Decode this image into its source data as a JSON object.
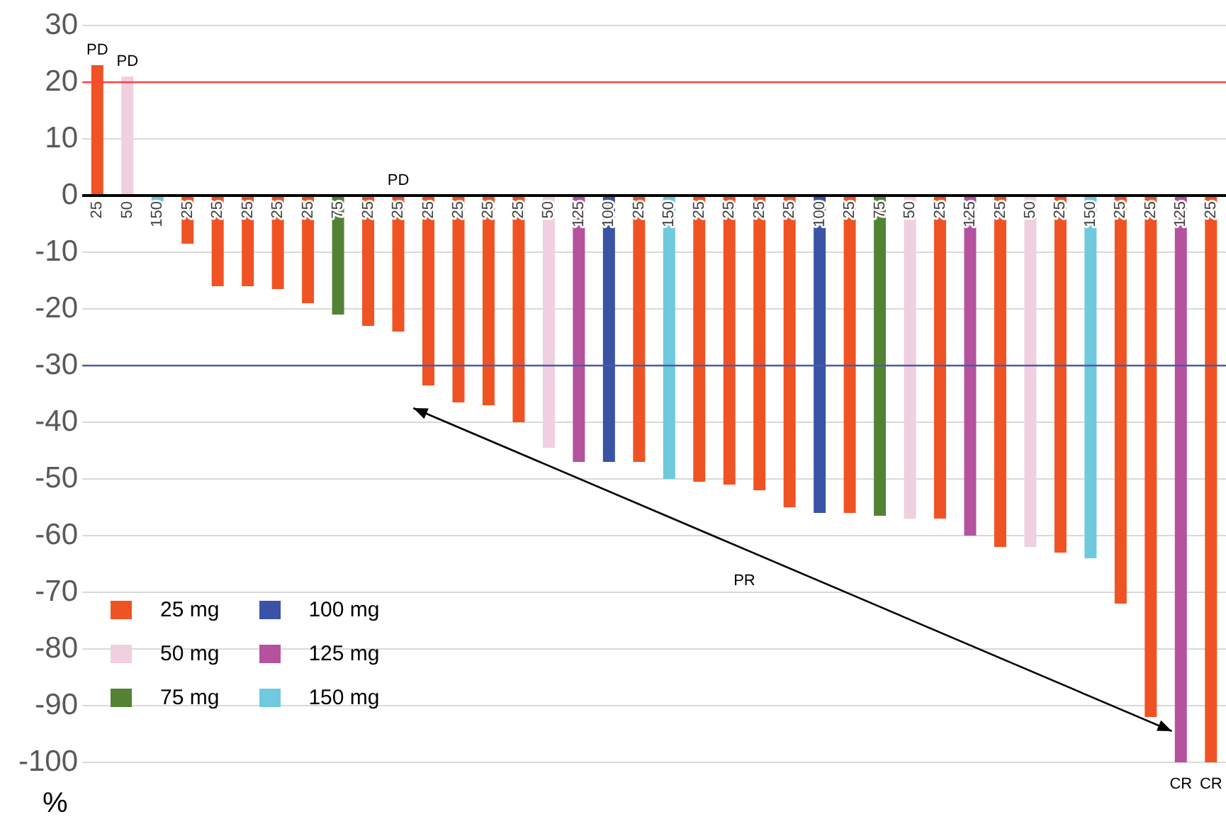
{
  "chart_data": {
    "type": "bar",
    "ylabel": "%",
    "ylim": [
      -100,
      30
    ],
    "yticks": [
      -100,
      -90,
      -80,
      -70,
      -60,
      -50,
      -40,
      -30,
      -20,
      -10,
      0,
      10,
      20,
      30
    ],
    "grid": "y",
    "legend": "bottom left",
    "categories": [
      "25",
      "50",
      "150",
      "25",
      "25",
      "25",
      "25",
      "25",
      "75",
      "25",
      "25",
      "25",
      "25",
      "25",
      "25",
      "50",
      "125",
      "100",
      "25",
      "150",
      "25",
      "25",
      "25",
      "25",
      "100",
      "25",
      "75",
      "50",
      "25",
      "125",
      "25",
      "50",
      "25",
      "150",
      "25",
      "25",
      "125",
      "25"
    ],
    "series": [
      {
        "name": "25 mg",
        "color": "#f05323",
        "values": [
          23,
          null,
          null,
          -8.5,
          -16,
          -16,
          -16.5,
          -19,
          null,
          -23,
          -24,
          -33.5,
          -36.5,
          -37,
          -40,
          null,
          null,
          null,
          -47,
          null,
          -50.5,
          -51,
          -52,
          -55,
          null,
          -56,
          null,
          null,
          -57,
          null,
          -62,
          null,
          -63,
          null,
          -72,
          -92,
          null,
          -100
        ],
        "value_labels": [
          "PD",
          null,
          null,
          null,
          null,
          null,
          null,
          null,
          null,
          null,
          "PD",
          null,
          null,
          null,
          null,
          null,
          null,
          null,
          null,
          null,
          null,
          null,
          null,
          null,
          null,
          null,
          null,
          null,
          null,
          null,
          null,
          null,
          null,
          null,
          null,
          null,
          null,
          "CR"
        ]
      },
      {
        "name": "50 mg",
        "color": "#f0cfe0",
        "values": [
          null,
          21,
          null,
          null,
          null,
          null,
          null,
          null,
          null,
          null,
          null,
          null,
          null,
          null,
          null,
          -44.5,
          null,
          null,
          null,
          null,
          null,
          null,
          null,
          null,
          null,
          null,
          null,
          -57,
          null,
          null,
          null,
          -62,
          null,
          null,
          null,
          null,
          null,
          null
        ],
        "value_labels": [
          null,
          "PD",
          null,
          null,
          null,
          null,
          null,
          null,
          null,
          null,
          null,
          null,
          null,
          null,
          null,
          null,
          null,
          null,
          null,
          null,
          null,
          null,
          null,
          null,
          null,
          null,
          null,
          null,
          null,
          null,
          null,
          null,
          null,
          null,
          null,
          null,
          null,
          null
        ]
      },
      {
        "name": "75 mg",
        "color": "#548235",
        "values": [
          null,
          null,
          null,
          null,
          null,
          null,
          null,
          null,
          -21,
          null,
          null,
          null,
          null,
          null,
          null,
          null,
          null,
          null,
          null,
          null,
          null,
          null,
          null,
          null,
          null,
          null,
          -56.5,
          null,
          null,
          null,
          null,
          null,
          null,
          null,
          null,
          null,
          null,
          null
        ]
      },
      {
        "name": "100 mg",
        "color": "#3a53a4",
        "values": [
          null,
          null,
          null,
          null,
          null,
          null,
          null,
          null,
          null,
          null,
          null,
          null,
          null,
          null,
          null,
          null,
          null,
          -47,
          null,
          null,
          null,
          null,
          null,
          null,
          -56,
          null,
          null,
          null,
          null,
          null,
          null,
          null,
          null,
          null,
          null,
          null,
          null,
          null
        ]
      },
      {
        "name": "125 mg",
        "color": "#b5529e",
        "values": [
          null,
          null,
          null,
          null,
          null,
          null,
          null,
          null,
          null,
          null,
          null,
          null,
          null,
          null,
          null,
          null,
          -47,
          null,
          null,
          null,
          null,
          null,
          null,
          null,
          null,
          null,
          null,
          null,
          null,
          -60,
          null,
          null,
          null,
          null,
          null,
          null,
          -100,
          null
        ],
        "value_labels": [
          null,
          null,
          null,
          null,
          null,
          null,
          null,
          null,
          null,
          null,
          null,
          null,
          null,
          null,
          null,
          null,
          null,
          null,
          null,
          null,
          null,
          null,
          null,
          null,
          null,
          null,
          null,
          null,
          null,
          null,
          null,
          null,
          null,
          null,
          null,
          null,
          "CR",
          null
        ]
      },
      {
        "name": "150 mg",
        "color": "#6ecadc",
        "values": [
          null,
          null,
          -1,
          null,
          null,
          null,
          null,
          null,
          null,
          null,
          null,
          null,
          null,
          null,
          null,
          null,
          null,
          null,
          null,
          -50,
          null,
          null,
          null,
          null,
          null,
          null,
          null,
          null,
          null,
          null,
          null,
          null,
          null,
          -64,
          null,
          null,
          null,
          null
        ]
      }
    ],
    "ref_lines": [
      {
        "axis": "y",
        "value": 20,
        "color": "#ff4040"
      },
      {
        "axis": "y",
        "value": -30,
        "color": "#4a5aa8"
      }
    ],
    "annotations": [
      "PR"
    ]
  }
}
